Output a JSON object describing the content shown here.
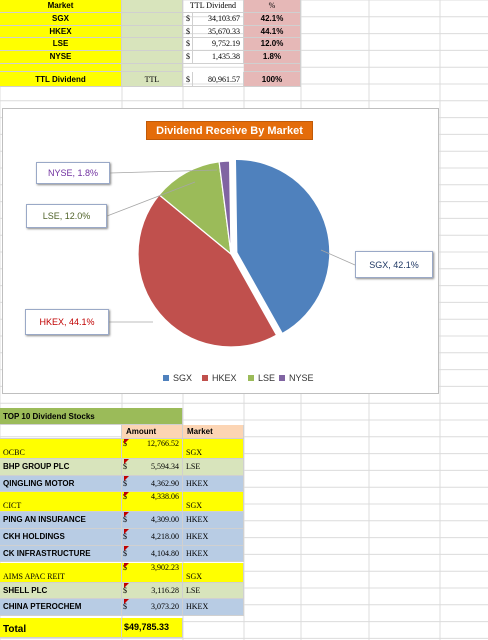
{
  "summary": {
    "headers": {
      "market": "Market",
      "ttl_dividend": "TTL Dividend",
      "pct": "%"
    },
    "rows": [
      {
        "market": "SGX",
        "cur": "$",
        "amount": "34,103.67",
        "pct": "42.1%"
      },
      {
        "market": "HKEX",
        "cur": "$",
        "amount": "35,670.33",
        "pct": "44.1%"
      },
      {
        "market": "LSE",
        "cur": "$",
        "amount": "9,752.19",
        "pct": "12.0%"
      },
      {
        "market": "NYSE",
        "cur": "$",
        "amount": "1,435.38",
        "pct": "1.8%"
      }
    ],
    "total": {
      "label": "TTL Dividend",
      "code": "TTL",
      "cur": "$",
      "amount": "80,961.57",
      "pct": "100%"
    }
  },
  "chart_data": {
    "type": "pie",
    "title": "Dividend Receive By  Market",
    "categories": [
      "SGX",
      "HKEX",
      "LSE",
      "NYSE"
    ],
    "values": [
      42.1,
      44.1,
      12.0,
      1.8
    ],
    "colors": [
      "#4f81bd",
      "#c0504d",
      "#9bbb59",
      "#8064a2"
    ],
    "data_labels": [
      "SGX, 42.1%",
      "HKEX, 44.1%",
      "LSE, 12.0%",
      "NYSE, 1.8%"
    ],
    "legend": [
      "SGX",
      "HKEX",
      "LSE",
      "NYSE"
    ],
    "legend_position": "bottom"
  },
  "top10": {
    "title": "TOP 10 Dividend Stocks",
    "headers": {
      "amount": "Amount",
      "market": "Market"
    },
    "rows": [
      {
        "name": "OCBC",
        "cur": "$",
        "amount": "12,766.52",
        "market": "SGX",
        "style": "yellow"
      },
      {
        "name": "BHP GROUP PLC",
        "cur": "$",
        "amount": "5,594.34",
        "market": "LSE",
        "style": "green"
      },
      {
        "name": "QINGLING MOTOR",
        "cur": "$",
        "amount": "4,362.90",
        "market": "HKEX",
        "style": "blue"
      },
      {
        "name": "CICT",
        "cur": "$",
        "amount": "4,338.06",
        "market": "SGX",
        "style": "yellow"
      },
      {
        "name": "PING AN INSURANCE",
        "cur": "$",
        "amount": "4,309.00",
        "market": "HKEX",
        "style": "blue"
      },
      {
        "name": "CKH HOLDINGS",
        "cur": "$",
        "amount": "4,218.00",
        "market": "HKEX",
        "style": "blue"
      },
      {
        "name": "CK INFRASTRUCTURE",
        "cur": "$",
        "amount": "4,104.80",
        "market": "HKEX",
        "style": "blue"
      },
      {
        "name": "AIMS APAC REIT",
        "cur": "$",
        "amount": "3,902.23",
        "market": "SGX",
        "style": "yellow"
      },
      {
        "name": "SHELL PLC",
        "cur": "$",
        "amount": "3,116.28",
        "market": "LSE",
        "style": "green"
      },
      {
        "name": "CHINA PTEROCHEM",
        "cur": "$",
        "amount": "3,073.20",
        "market": "HKEX",
        "style": "blue"
      }
    ],
    "total": {
      "label": "Total",
      "amount": "$49,785.33"
    }
  }
}
